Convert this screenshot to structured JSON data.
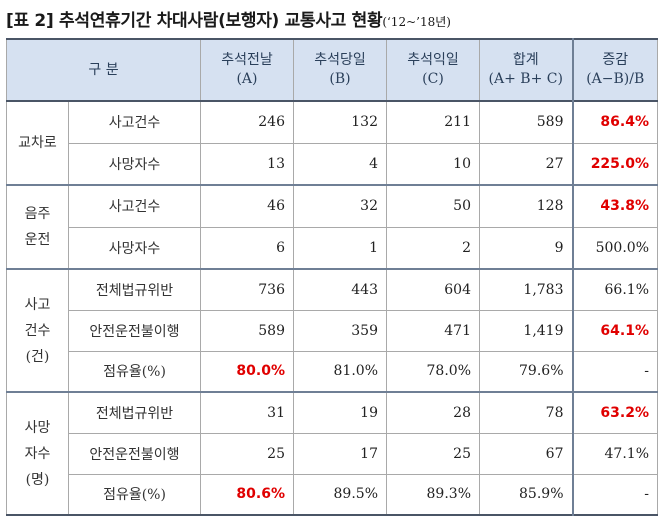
{
  "title": {
    "main": "[표 2] 추석연휴기간 차대사람(보행자) 교통사고 현황",
    "sub": "(‘12~’18년)"
  },
  "header": {
    "group": "구 분",
    "cols": [
      {
        "line1": "추석전날",
        "line2": "(A)"
      },
      {
        "line1": "추석당일",
        "line2": "(B)"
      },
      {
        "line1": "추석익일",
        "line2": "(C)"
      },
      {
        "line1": "합계",
        "line2": "(A+ B+ C)"
      },
      {
        "line1": "증감",
        "line2": "(A−B)/B"
      }
    ]
  },
  "sections": [
    {
      "group": [
        "교차로"
      ],
      "rows": [
        {
          "label": "사고건수",
          "values": [
            "246",
            "132",
            "211",
            "589",
            "86.4%"
          ],
          "highlight": [
            4
          ]
        },
        {
          "label": "사망자수",
          "values": [
            "13",
            "4",
            "10",
            "27",
            "225.0%"
          ],
          "highlight": [
            4
          ]
        }
      ]
    },
    {
      "group": [
        "음주",
        "운전"
      ],
      "rows": [
        {
          "label": "사고건수",
          "values": [
            "46",
            "32",
            "50",
            "128",
            "43.8%"
          ],
          "highlight": [
            4
          ]
        },
        {
          "label": "사망자수",
          "values": [
            "6",
            "1",
            "2",
            "9",
            "500.0%"
          ],
          "highlight": []
        }
      ]
    },
    {
      "group": [
        "사고",
        "건수",
        "(건)"
      ],
      "rows": [
        {
          "label": "전체법규위반",
          "values": [
            "736",
            "443",
            "604",
            "1,783",
            "66.1%"
          ],
          "highlight": []
        },
        {
          "label": "안전운전불이행",
          "values": [
            "589",
            "359",
            "471",
            "1,419",
            "64.1%"
          ],
          "highlight": [
            4
          ]
        },
        {
          "label": "점유율(%)",
          "values": [
            "80.0%",
            "81.0%",
            "78.0%",
            "79.6%",
            "-"
          ],
          "highlight": [
            0
          ]
        }
      ]
    },
    {
      "group": [
        "사망",
        "자수",
        "(명)"
      ],
      "rows": [
        {
          "label": "전체법규위반",
          "values": [
            "31",
            "19",
            "28",
            "78",
            "63.2%"
          ],
          "highlight": [
            4
          ]
        },
        {
          "label": "안전운전불이행",
          "values": [
            "25",
            "17",
            "25",
            "67",
            "47.1%"
          ],
          "highlight": []
        },
        {
          "label": "점유율(%)",
          "values": [
            "80.6%",
            "89.5%",
            "89.3%",
            "85.9%",
            "-"
          ],
          "highlight": [
            0
          ]
        }
      ]
    }
  ]
}
